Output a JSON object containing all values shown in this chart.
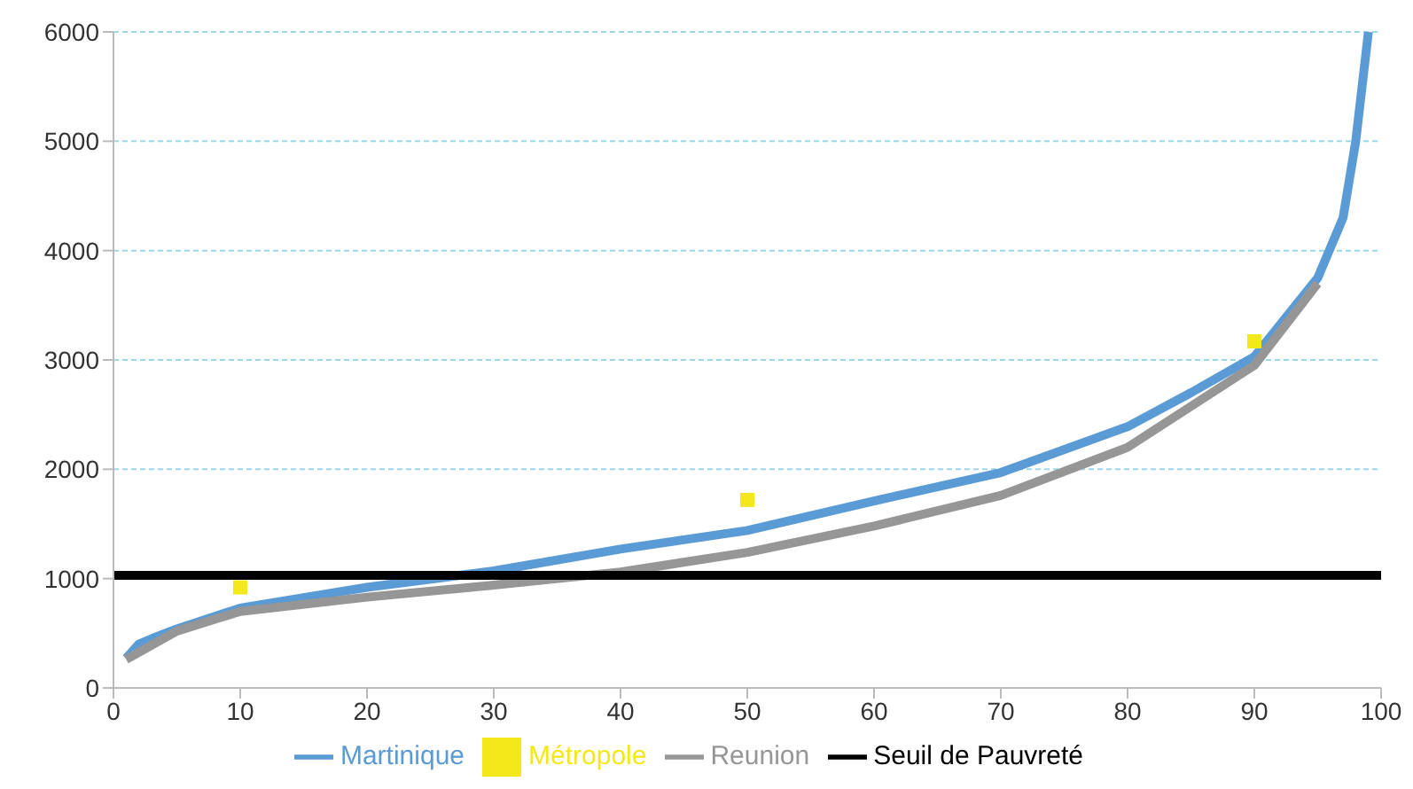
{
  "chart_data": {
    "type": "line",
    "xlim": [
      0,
      100
    ],
    "xticks": [
      0,
      10,
      20,
      30,
      40,
      50,
      60,
      70,
      80,
      90,
      100
    ],
    "ylim": [
      0,
      6000
    ],
    "yticks": [
      0,
      1000,
      2000,
      3000,
      4000,
      5000,
      6000
    ],
    "grid": "y",
    "legend": "bottom",
    "marker": "none",
    "series": [
      {
        "name": "Martinique",
        "color": "#5b9bd5",
        "x": [
          1,
          2,
          3,
          5,
          10,
          20,
          30,
          40,
          50,
          60,
          70,
          80,
          85,
          90,
          95,
          97,
          98,
          99
        ],
        "values": [
          270,
          400,
          450,
          540,
          730,
          920,
          1070,
          1270,
          1440,
          1710,
          1970,
          2390,
          2700,
          3030,
          3750,
          4300,
          5000,
          6000
        ]
      },
      {
        "name": "Reunion",
        "color": "#969696",
        "x": [
          1,
          5,
          10,
          20,
          30,
          40,
          50,
          60,
          70,
          80,
          90,
          95
        ],
        "values": [
          260,
          520,
          700,
          830,
          940,
          1060,
          1240,
          1480,
          1760,
          2200,
          2950,
          3700
        ]
      },
      {
        "name": "Métropole",
        "type": "scatter",
        "marker": "square",
        "color": "#f2e81a",
        "x": [
          10,
          50,
          90
        ],
        "values": [
          920,
          1720,
          3170
        ]
      },
      {
        "name": "Seuil de Pauvreté",
        "color": "#000000",
        "x": [
          0,
          100
        ],
        "values": [
          1030,
          1030
        ]
      }
    ]
  }
}
